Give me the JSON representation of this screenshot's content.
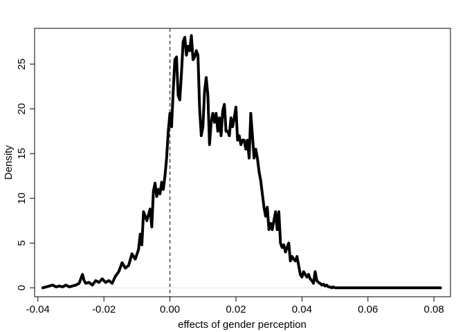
{
  "chart_data": {
    "type": "line",
    "title": "",
    "xlabel": "effects of gender perception",
    "ylabel": "Density",
    "xlim": [
      -0.041,
      0.085
    ],
    "ylim": [
      -1.0,
      29.0
    ],
    "grid": false,
    "legend": "none",
    "reference_lines": [
      {
        "axis": "x",
        "value": 0.0,
        "style": "dashed"
      },
      {
        "axis": "y",
        "value": 0.0,
        "style": "solid-light"
      }
    ],
    "x_ticks": [
      {
        "value": -0.04,
        "label": "-0.04"
      },
      {
        "value": -0.02,
        "label": "-0.02"
      },
      {
        "value": 0.0,
        "label": "0.00"
      },
      {
        "value": 0.02,
        "label": "0.02"
      },
      {
        "value": 0.04,
        "label": "0.04"
      },
      {
        "value": 0.06,
        "label": "0.06"
      },
      {
        "value": 0.08,
        "label": "0.08"
      }
    ],
    "y_ticks": [
      {
        "value": 0,
        "label": "0"
      },
      {
        "value": 5,
        "label": "5"
      },
      {
        "value": 10,
        "label": "10"
      },
      {
        "value": 15,
        "label": "15"
      },
      {
        "value": 20,
        "label": "20"
      },
      {
        "value": 25,
        "label": "25"
      }
    ],
    "series": [
      {
        "color": "#000000",
        "x": [
          -0.0385,
          -0.0375,
          -0.0365,
          -0.0355,
          -0.0345,
          -0.0335,
          -0.0325,
          -0.0315,
          -0.0305,
          -0.0295,
          -0.0285,
          -0.0275,
          -0.0265,
          -0.026,
          -0.0255,
          -0.0245,
          -0.0235,
          -0.0225,
          -0.0215,
          -0.0205,
          -0.0195,
          -0.0185,
          -0.0175,
          -0.0165,
          -0.0155,
          -0.0145,
          -0.0135,
          -0.0125,
          -0.0115,
          -0.0105,
          -0.0095,
          -0.009,
          -0.0085,
          -0.008,
          -0.0075,
          -0.007,
          -0.006,
          -0.0055,
          -0.005,
          -0.0045,
          -0.004,
          -0.0035,
          -0.003,
          -0.0025,
          -0.002,
          -0.0015,
          -0.001,
          -0.0005,
          0.0,
          0.0005,
          0.001,
          0.0015,
          0.002,
          0.0025,
          0.003,
          0.0035,
          0.004,
          0.0045,
          0.005,
          0.0055,
          0.006,
          0.0065,
          0.007,
          0.0075,
          0.008,
          0.0085,
          0.009,
          0.0095,
          0.01,
          0.0105,
          0.011,
          0.0115,
          0.012,
          0.0125,
          0.013,
          0.0135,
          0.014,
          0.0145,
          0.015,
          0.0155,
          0.016,
          0.0165,
          0.017,
          0.0175,
          0.018,
          0.0185,
          0.019,
          0.0195,
          0.02,
          0.0205,
          0.021,
          0.0215,
          0.022,
          0.0225,
          0.023,
          0.0235,
          0.024,
          0.0245,
          0.025,
          0.0255,
          0.026,
          0.0265,
          0.027,
          0.0275,
          0.028,
          0.0285,
          0.029,
          0.0295,
          0.03,
          0.0305,
          0.031,
          0.0315,
          0.032,
          0.0325,
          0.033,
          0.0335,
          0.034,
          0.0345,
          0.035,
          0.0355,
          0.036,
          0.0365,
          0.037,
          0.0375,
          0.038,
          0.0385,
          0.039,
          0.0395,
          0.04,
          0.0405,
          0.041,
          0.0415,
          0.042,
          0.0425,
          0.043,
          0.0435,
          0.044,
          0.0445,
          0.045,
          0.0455,
          0.046,
          0.0465,
          0.047,
          0.0475,
          0.048,
          0.0485,
          0.049,
          0.0495,
          0.05,
          0.0505,
          0.051,
          0.0515,
          0.052,
          0.0525,
          0.053,
          0.0535,
          0.054,
          0.0545,
          0.055,
          0.0555,
          0.056,
          0.0565,
          0.057,
          0.0575,
          0.058,
          0.0585,
          0.059,
          0.0595,
          0.06,
          0.061,
          0.062,
          0.063,
          0.064,
          0.065,
          0.066,
          0.067,
          0.068,
          0.069,
          0.07,
          0.071,
          0.072,
          0.073,
          0.074,
          0.075,
          0.076,
          0.077,
          0.078,
          0.079,
          0.08,
          0.081,
          0.082
        ],
        "y": [
          0.0,
          0.1,
          0.2,
          0.3,
          0.1,
          0.2,
          0.1,
          0.3,
          0.1,
          0.2,
          0.3,
          0.5,
          1.5,
          0.8,
          0.5,
          0.6,
          0.3,
          0.8,
          0.6,
          1.0,
          0.6,
          0.8,
          0.5,
          1.3,
          1.8,
          2.8,
          2.2,
          2.5,
          3.8,
          3.2,
          4.3,
          6.0,
          4.8,
          8.5,
          8.0,
          7.5,
          8.8,
          6.8,
          10.8,
          11.7,
          10.2,
          11.0,
          10.5,
          11.8,
          11.0,
          12.5,
          14.5,
          17.5,
          19.5,
          18.0,
          22.0,
          25.5,
          25.8,
          21.5,
          21.0,
          24.0,
          27.5,
          28.0,
          26.0,
          27.0,
          26.5,
          28.2,
          25.5,
          25.8,
          26.5,
          26.0,
          20.0,
          17.0,
          18.0,
          22.0,
          23.5,
          21.5,
          16.0,
          18.5,
          19.5,
          18.5,
          19.5,
          17.5,
          19.0,
          17.0,
          19.8,
          20.5,
          17.5,
          17.5,
          17.0,
          19.0,
          18.0,
          19.0,
          20.2,
          16.5,
          17.0,
          16.0,
          16.5,
          16.5,
          15.5,
          16.5,
          14.5,
          19.5,
          17.0,
          14.5,
          15.5,
          14.5,
          13.0,
          12.0,
          10.5,
          9.0,
          8.0,
          9.0,
          6.5,
          7.2,
          6.5,
          7.5,
          8.5,
          6.5,
          8.5,
          5.0,
          4.5,
          4.8,
          4.0,
          4.5,
          5.0,
          3.0,
          3.5,
          3.2,
          3.0,
          3.5,
          2.5,
          1.5,
          1.2,
          1.8,
          1.5,
          1.2,
          1.5,
          1.0,
          0.8,
          0.5,
          1.8,
          0.8,
          0.6,
          0.5,
          0.3,
          0.4,
          0.2,
          0.3,
          0.1,
          0.1,
          0.0,
          0.1,
          0.0,
          0.0,
          0.0,
          0.0,
          0.0,
          0.0,
          0.0,
          0.0,
          0.0,
          0.0,
          0.0,
          0.0,
          0.0,
          0.0,
          0.0,
          0.0,
          0.0,
          0.0,
          0.0,
          0.0,
          0.0,
          0.0,
          0.0,
          0.0,
          0.0,
          0.0,
          0.0,
          0.0,
          0.0,
          0.0,
          0.0,
          0.0,
          0.0,
          0.0,
          0.0,
          0.0,
          0.0,
          0.0,
          0.0,
          0.0,
          0.0,
          0.0,
          0.0
        ]
      }
    ]
  }
}
